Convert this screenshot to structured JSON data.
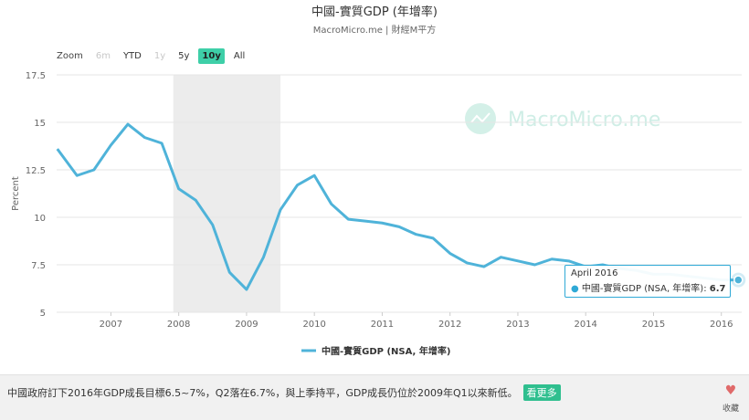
{
  "chart_data": {
    "type": "line",
    "title": "中國-實質GDP (年增率)",
    "subtitle": "MacroMicro.me | 財經M平方",
    "watermark": "MacroMicro.me",
    "ylabel": "Percent",
    "ylim": [
      5,
      17.5
    ],
    "yticks": [
      "17.5",
      "15",
      "12.5",
      "10",
      "7.5",
      "5"
    ],
    "ytick_values": [
      17.5,
      15,
      12.5,
      10,
      7.5,
      5
    ],
    "xlim": [
      2006.2,
      2016.3
    ],
    "xticks": [
      "2007",
      "2008",
      "2009",
      "2010",
      "2011",
      "2012",
      "2013",
      "2014",
      "2015",
      "2016"
    ],
    "xtick_values": [
      2007,
      2008,
      2009,
      2010,
      2011,
      2012,
      2013,
      2014,
      2015,
      2016
    ],
    "shaded_region": [
      2007.92,
      2009.5
    ],
    "grid": "horizontal",
    "legend_position": "bottom-center",
    "line_color": "#4fb3d9",
    "series": [
      {
        "name": "中國-實質GDP (NSA, 年增率)",
        "x": [
          2006.21,
          2006.5,
          2006.75,
          2007.0,
          2007.25,
          2007.5,
          2007.75,
          2008.0,
          2008.25,
          2008.5,
          2008.75,
          2009.0,
          2009.25,
          2009.5,
          2009.75,
          2010.0,
          2010.25,
          2010.5,
          2010.75,
          2011.0,
          2011.25,
          2011.5,
          2011.75,
          2012.0,
          2012.25,
          2012.5,
          2012.75,
          2013.0,
          2013.25,
          2013.5,
          2013.75,
          2014.0,
          2014.25,
          2014.5,
          2014.75,
          2015.0,
          2015.25,
          2015.5,
          2015.75,
          2016.0,
          2016.25
        ],
        "values": [
          13.6,
          12.2,
          12.5,
          13.8,
          14.9,
          14.2,
          13.9,
          11.5,
          10.9,
          9.6,
          7.1,
          6.2,
          7.9,
          10.4,
          11.7,
          12.2,
          10.7,
          9.9,
          9.8,
          9.7,
          9.5,
          9.1,
          8.9,
          8.1,
          7.6,
          7.4,
          7.9,
          7.7,
          7.5,
          7.8,
          7.7,
          7.4,
          7.5,
          7.3,
          7.2,
          7.0,
          7.0,
          6.9,
          6.8,
          6.7,
          6.7
        ]
      }
    ]
  },
  "zoom": {
    "label": "Zoom",
    "buttons": [
      "6m",
      "YTD",
      "1y",
      "5y",
      "10y",
      "All"
    ],
    "active": "10y",
    "disabled": [
      "6m",
      "1y"
    ]
  },
  "tooltip": {
    "date": "April 2016",
    "series_label": "中國-實質GDP (NSA, 年增率): ",
    "value": "6.7"
  },
  "footer": {
    "text": "中國政府訂下2016年GDP成長目標6.5~7%，Q2落在6.7%，與上季持平，GDP成長仍位於2009年Q1以來新低。",
    "more_label": "看更多",
    "favorite_label": "收藏"
  }
}
